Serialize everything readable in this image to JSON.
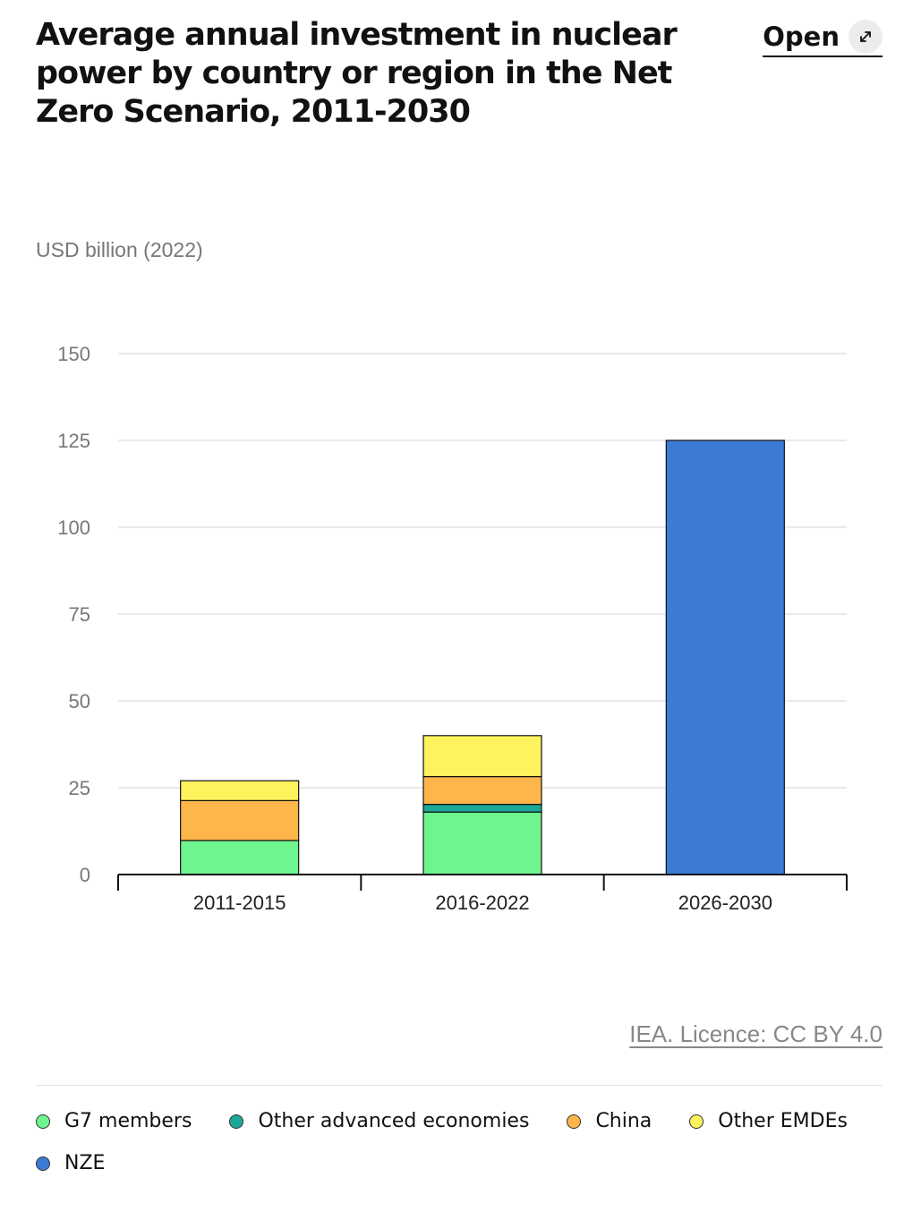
{
  "header": {
    "title": "Average annual investment in nuclear power by country or region in the Net Zero Scenario, 2011-2030",
    "open_label": "Open",
    "open_icon": "expand-arrows-icon"
  },
  "credit": "IEA. Licence: CC BY 4.0",
  "chart_data": {
    "type": "bar",
    "stacked": true,
    "unit_label": "USD billion (2022)",
    "categories": [
      "2011-2015",
      "2016-2022",
      "2026-2030"
    ],
    "ylim": [
      0,
      150
    ],
    "yticks": [
      0,
      25,
      50,
      75,
      100,
      125,
      150
    ],
    "grid": true,
    "legend_position": "bottom",
    "series": [
      {
        "name": "G7 members",
        "color": "#6ef58f",
        "values": [
          9.8,
          18,
          0
        ]
      },
      {
        "name": "Other advanced economies",
        "color": "#1ba89a",
        "values": [
          0,
          2.2,
          0
        ]
      },
      {
        "name": "China",
        "color": "#feb64a",
        "values": [
          11.5,
          8,
          0
        ]
      },
      {
        "name": "Other EMDEs",
        "color": "#fef35c",
        "values": [
          5.7,
          11.8,
          0
        ]
      },
      {
        "name": "NZE",
        "color": "#3b7bd4",
        "values": [
          0,
          0,
          125
        ]
      }
    ]
  }
}
